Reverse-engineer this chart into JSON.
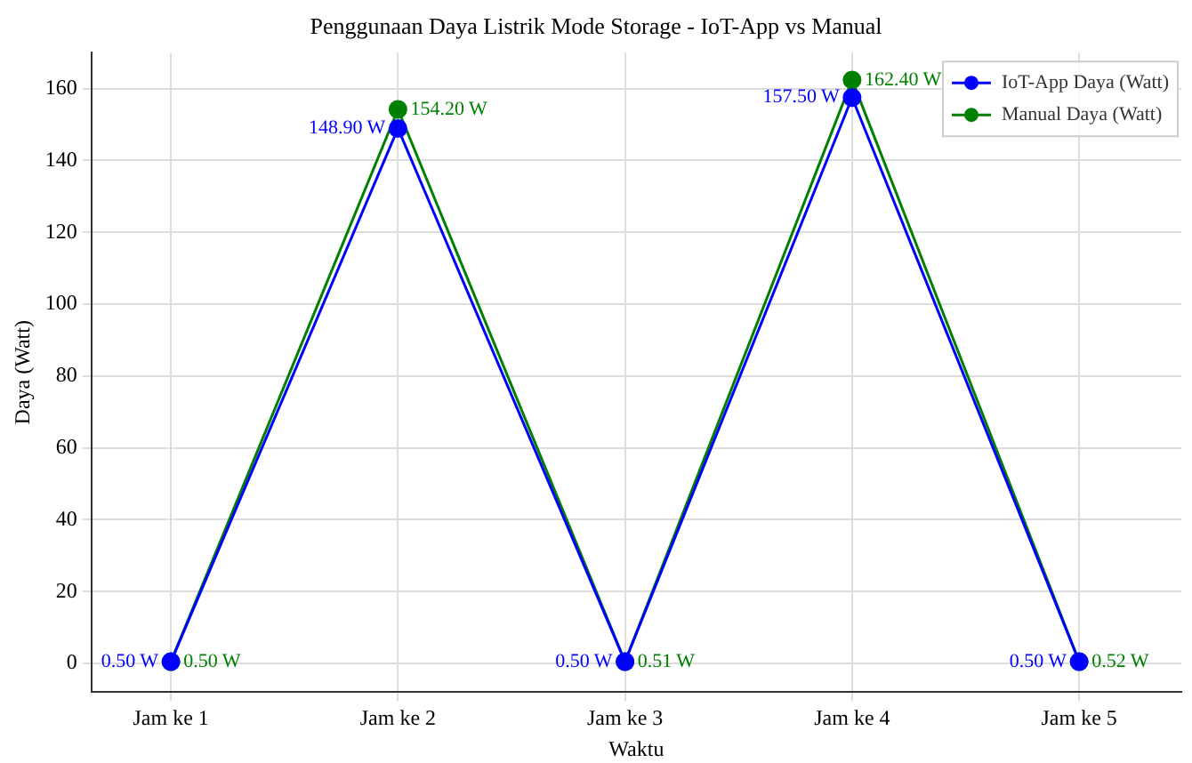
{
  "chart_data": {
    "type": "line",
    "title": "Penggunaan Daya Listrik Mode Storage - IoT-App vs Manual",
    "xlabel": "Waktu",
    "ylabel": "Daya (Watt)",
    "categories": [
      "Jam ke 1",
      "Jam ke 2",
      "Jam ke 3",
      "Jam ke 4",
      "Jam ke 5"
    ],
    "series": [
      {
        "name": "IoT-App Daya (Watt)",
        "color": "#0000ff",
        "values": [
          0.5,
          148.9,
          0.5,
          157.5,
          0.5
        ],
        "value_labels": [
          "0.50 W",
          "148.90 W",
          "0.50 W",
          "157.50 W",
          "0.50 W"
        ]
      },
      {
        "name": "Manual Daya (Watt)",
        "color": "#008000",
        "values": [
          0.5,
          154.2,
          0.51,
          162.4,
          0.52
        ],
        "value_labels": [
          "0.50 W",
          "154.20 W",
          "0.51 W",
          "162.40 W",
          "0.52 W"
        ]
      }
    ],
    "ylim": [
      -8,
      170
    ],
    "yticks": [
      0,
      20,
      40,
      60,
      80,
      100,
      120,
      140,
      160
    ],
    "grid": true,
    "legend": "top right",
    "marker": "circle",
    "line_style": "solid"
  }
}
